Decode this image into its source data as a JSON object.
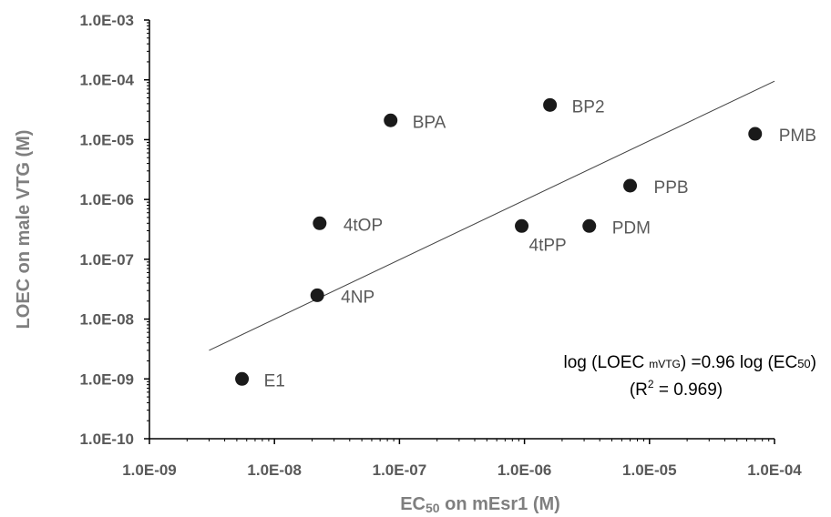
{
  "chart_data": {
    "type": "scatter",
    "xscale": "log",
    "yscale": "log",
    "xlim": [
      1e-09,
      0.0001
    ],
    "ylim": [
      1e-10,
      0.001
    ],
    "xlabel": {
      "main": "EC",
      "sub": "50",
      "rest": " on mEsr1 (M)"
    },
    "ylabel": "LOEC on male VTG (M)",
    "x_ticks": [
      {
        "value": 1e-09,
        "label": "1.0E-09"
      },
      {
        "value": 1e-08,
        "label": "1.0E-08"
      },
      {
        "value": 1e-07,
        "label": "1.0E-07"
      },
      {
        "value": 1e-06,
        "label": "1.0E-06"
      },
      {
        "value": 1e-05,
        "label": "1.0E-05"
      },
      {
        "value": 0.0001,
        "label": "1.0E-04"
      }
    ],
    "y_ticks": [
      {
        "value": 1e-10,
        "label": "1.0E-10"
      },
      {
        "value": 1e-09,
        "label": "1.0E-09"
      },
      {
        "value": 1e-08,
        "label": "1.0E-08"
      },
      {
        "value": 1e-07,
        "label": "1.0E-07"
      },
      {
        "value": 1e-06,
        "label": "1.0E-06"
      },
      {
        "value": 1e-05,
        "label": "1.0E-05"
      },
      {
        "value": 0.0001,
        "label": "1.0E-04"
      },
      {
        "value": 0.001,
        "label": "1.0E-03"
      }
    ],
    "points": [
      {
        "name": "E1",
        "x": 5.5e-09,
        "y": 1e-09
      },
      {
        "name": "4NP",
        "x": 2.2e-08,
        "y": 2.5e-08
      },
      {
        "name": "4tOP",
        "x": 2.3e-08,
        "y": 4e-07
      },
      {
        "name": "BPA",
        "x": 8.5e-08,
        "y": 2.1e-05
      },
      {
        "name": "4tPP",
        "x": 9.5e-07,
        "y": 3.6e-07
      },
      {
        "name": "BP2",
        "x": 1.6e-06,
        "y": 3.8e-05
      },
      {
        "name": "PDM",
        "x": 3.3e-06,
        "y": 3.6e-07
      },
      {
        "name": "PPB",
        "x": 7e-06,
        "y": 1.7e-06
      },
      {
        "name": "PMB",
        "x": 7e-05,
        "y": 1.25e-05
      }
    ],
    "trendline": {
      "x": [
        3e-09,
        0.0001
      ],
      "y": [
        3e-09,
        9.5e-05
      ]
    },
    "equation": {
      "part1": "log (LOEC",
      "sub1": "mVTG",
      "part2": ") =0.96 log (EC",
      "sub2": "50",
      "part3": ")",
      "r2_prefix": "(R",
      "r2_sup": "2",
      "r2_rest": " = 0.969)"
    },
    "grid": false,
    "legend": "none",
    "marker_color": "#1a1a1a",
    "line_color": "#404040"
  }
}
